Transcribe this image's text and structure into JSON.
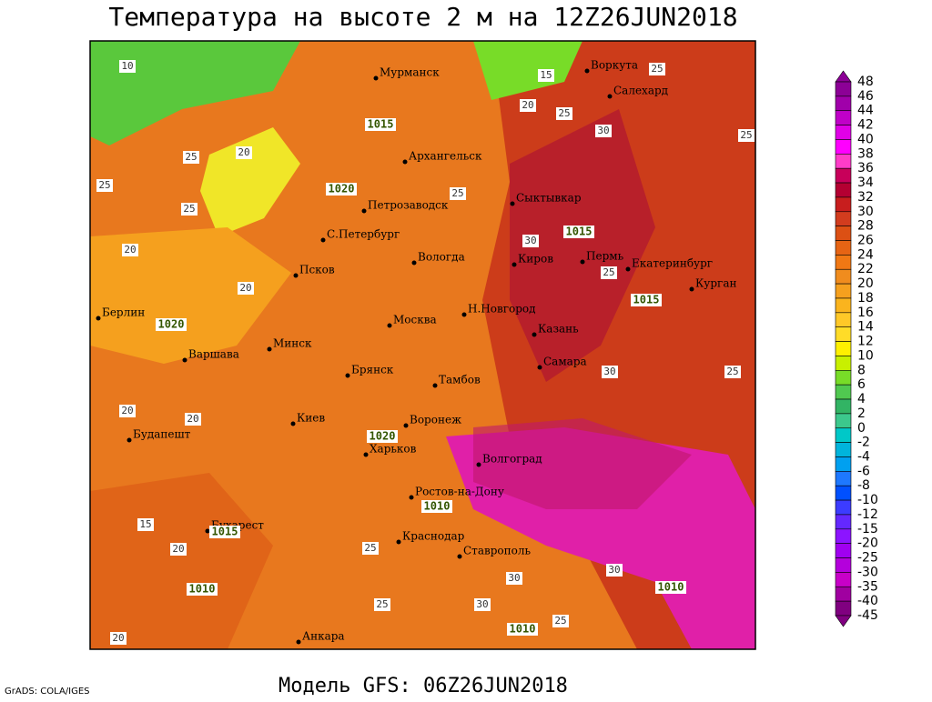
{
  "title": "Температура на высоте 2 м на 12Z26JUN2018",
  "subtitle": "Модель GFS: 06Z26JUN2018",
  "credit": "GrADS: COLA/IGES",
  "cities": [
    "Мурманск",
    "Воркута",
    "Салехард",
    "Архангельск",
    "Сыктывкар",
    "Петрозаводск",
    "С.Петербург",
    "Вологда",
    "Киров",
    "Пермь",
    "Екатеринбург",
    "Курган",
    "Псков",
    "Берлин",
    "Москва",
    "Н.Новгород",
    "Казань",
    "Варшава",
    "Минск",
    "Самара",
    "Брянск",
    "Тамбов",
    "Киев",
    "Воронеж",
    "Будапешт",
    "Харьков",
    "Волгоград",
    "Ростов-на-Дону",
    "Бухарест",
    "Краснодар",
    "Ставрополь",
    "Анкара"
  ],
  "isobar_labels": [
    "1015",
    "1020",
    "1015",
    "1020",
    "1020",
    "1015",
    "1010",
    "1015",
    "1010",
    "1010",
    "1010"
  ],
  "temperature_labels": [
    "10",
    "15",
    "25",
    "20",
    "25",
    "25",
    "20",
    "25",
    "30",
    "25",
    "20",
    "25",
    "20",
    "25",
    "30",
    "25",
    "20",
    "30",
    "25",
    "20",
    "15",
    "20",
    "25",
    "30",
    "25",
    "30",
    "30",
    "25",
    "20"
  ],
  "legend": {
    "levels": [
      48,
      46,
      44,
      42,
      40,
      38,
      36,
      34,
      32,
      30,
      28,
      26,
      24,
      22,
      20,
      18,
      16,
      14,
      12,
      10,
      8,
      6,
      4,
      2,
      0,
      -2,
      -4,
      -6,
      -8,
      -10,
      -12,
      -15,
      -20,
      -25,
      -30,
      -35,
      -40,
      -45
    ],
    "colors": [
      "#8c0096",
      "#a000aa",
      "#c000c8",
      "#e000e6",
      "#ff00ff",
      "#ff3cc8",
      "#c8005a",
      "#b40032",
      "#c81e1e",
      "#d23c1e",
      "#dc5014",
      "#e66414",
      "#f07814",
      "#f08c1e",
      "#f5a01e",
      "#fab41e",
      "#ffc828",
      "#ffdc28",
      "#fff000",
      "#c8f000",
      "#78dc28",
      "#50c850",
      "#32b464",
      "#3cc88c",
      "#00c8c8",
      "#00b4dc",
      "#00a0f0",
      "#1e78ff",
      "#0050ff",
      "#3c3cff",
      "#6428ff",
      "#8c14ff",
      "#a000f0",
      "#b400dc",
      "#c800c8",
      "#a000a0",
      "#800080"
    ]
  }
}
